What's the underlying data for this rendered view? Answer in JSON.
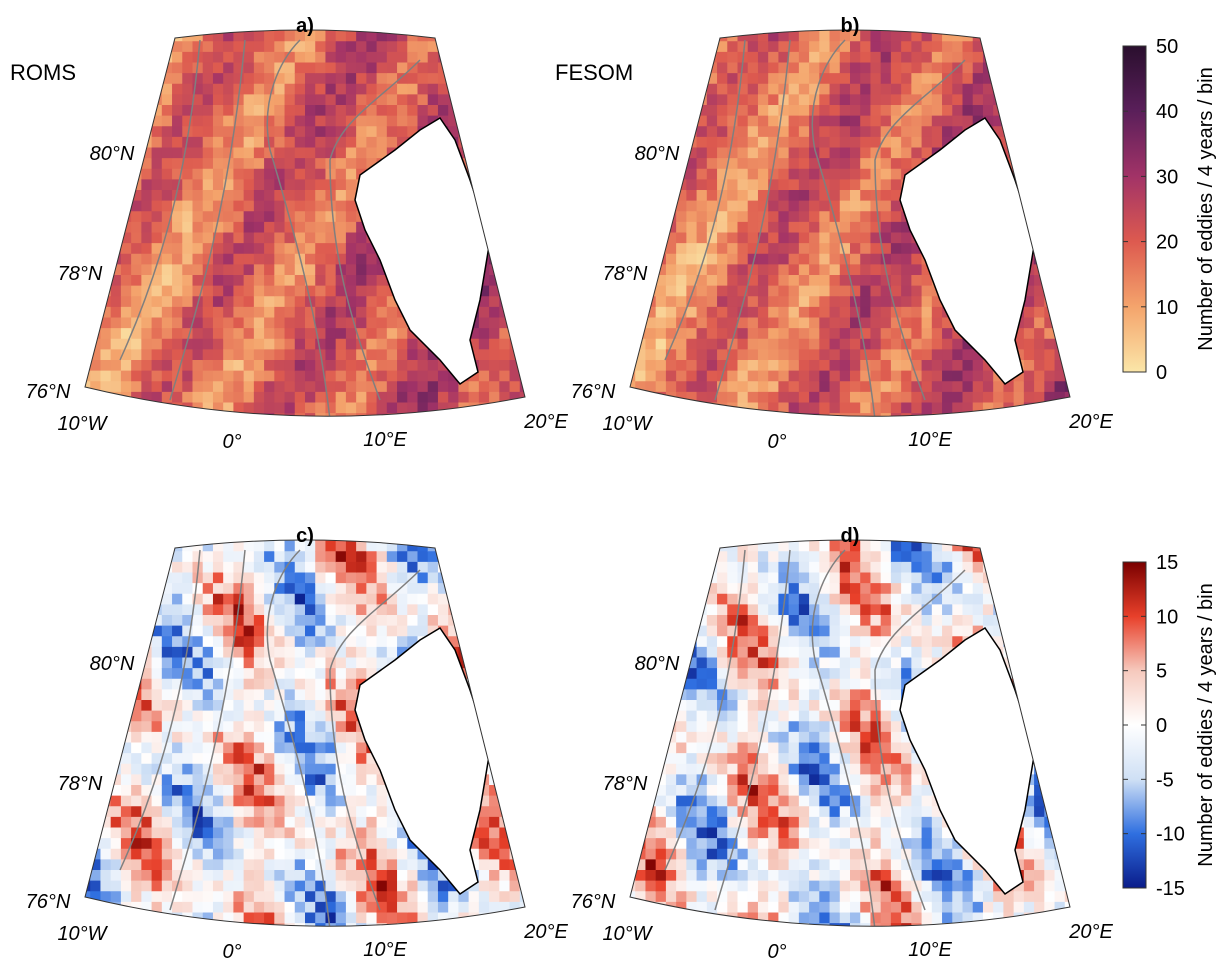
{
  "rows": [
    {
      "panels": [
        {
          "label": "a)",
          "model": "ROMS"
        },
        {
          "label": "b)",
          "model": "FESOM"
        }
      ],
      "colorbar": {
        "label": "Number of eddies / 4 years / bin",
        "lim": [
          0,
          50
        ],
        "ticks": [
          0,
          10,
          20,
          30,
          40,
          50
        ],
        "colormap": [
          "#fbe6a8",
          "#f4a46c",
          "#dd5a4f",
          "#a23367",
          "#5a1f5a",
          "#2a0f2e"
        ]
      }
    },
    {
      "panels": [
        {
          "label": "c)"
        },
        {
          "label": "d)"
        }
      ],
      "colorbar": {
        "label": "Number of eddies / 4 years / bin",
        "lim": [
          -15,
          15
        ],
        "ticks": [
          -15,
          -10,
          -5,
          0,
          5,
          10,
          15
        ],
        "colormap": [
          "#0a1c8a",
          "#2f6fe0",
          "#cfe0f5",
          "#ffffff",
          "#f6c9bd",
          "#e8402a",
          "#7a0000"
        ]
      }
    }
  ],
  "map_axes": {
    "lat_ticks": [
      "80°N",
      "78°N",
      "76°N"
    ],
    "lon_ticks": [
      "10°W",
      "0°",
      "10°E",
      "20°E"
    ]
  }
}
